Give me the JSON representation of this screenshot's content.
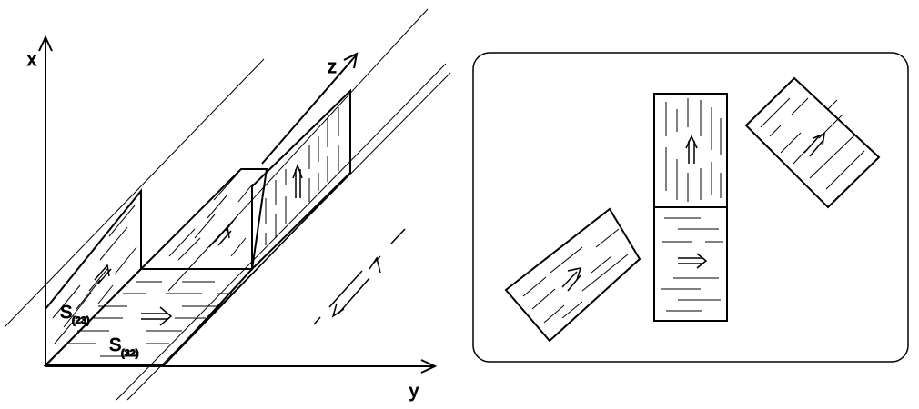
{
  "left_figure": {
    "axes": {
      "x": "x",
      "y": "y",
      "z": "z"
    },
    "labels": {
      "s23_base": "S",
      "s23_sub": "(23)",
      "s32_base": "S",
      "s32_sub": "(32)"
    }
  },
  "colors": {
    "ink": "#000000",
    "background": "#ffffff"
  }
}
